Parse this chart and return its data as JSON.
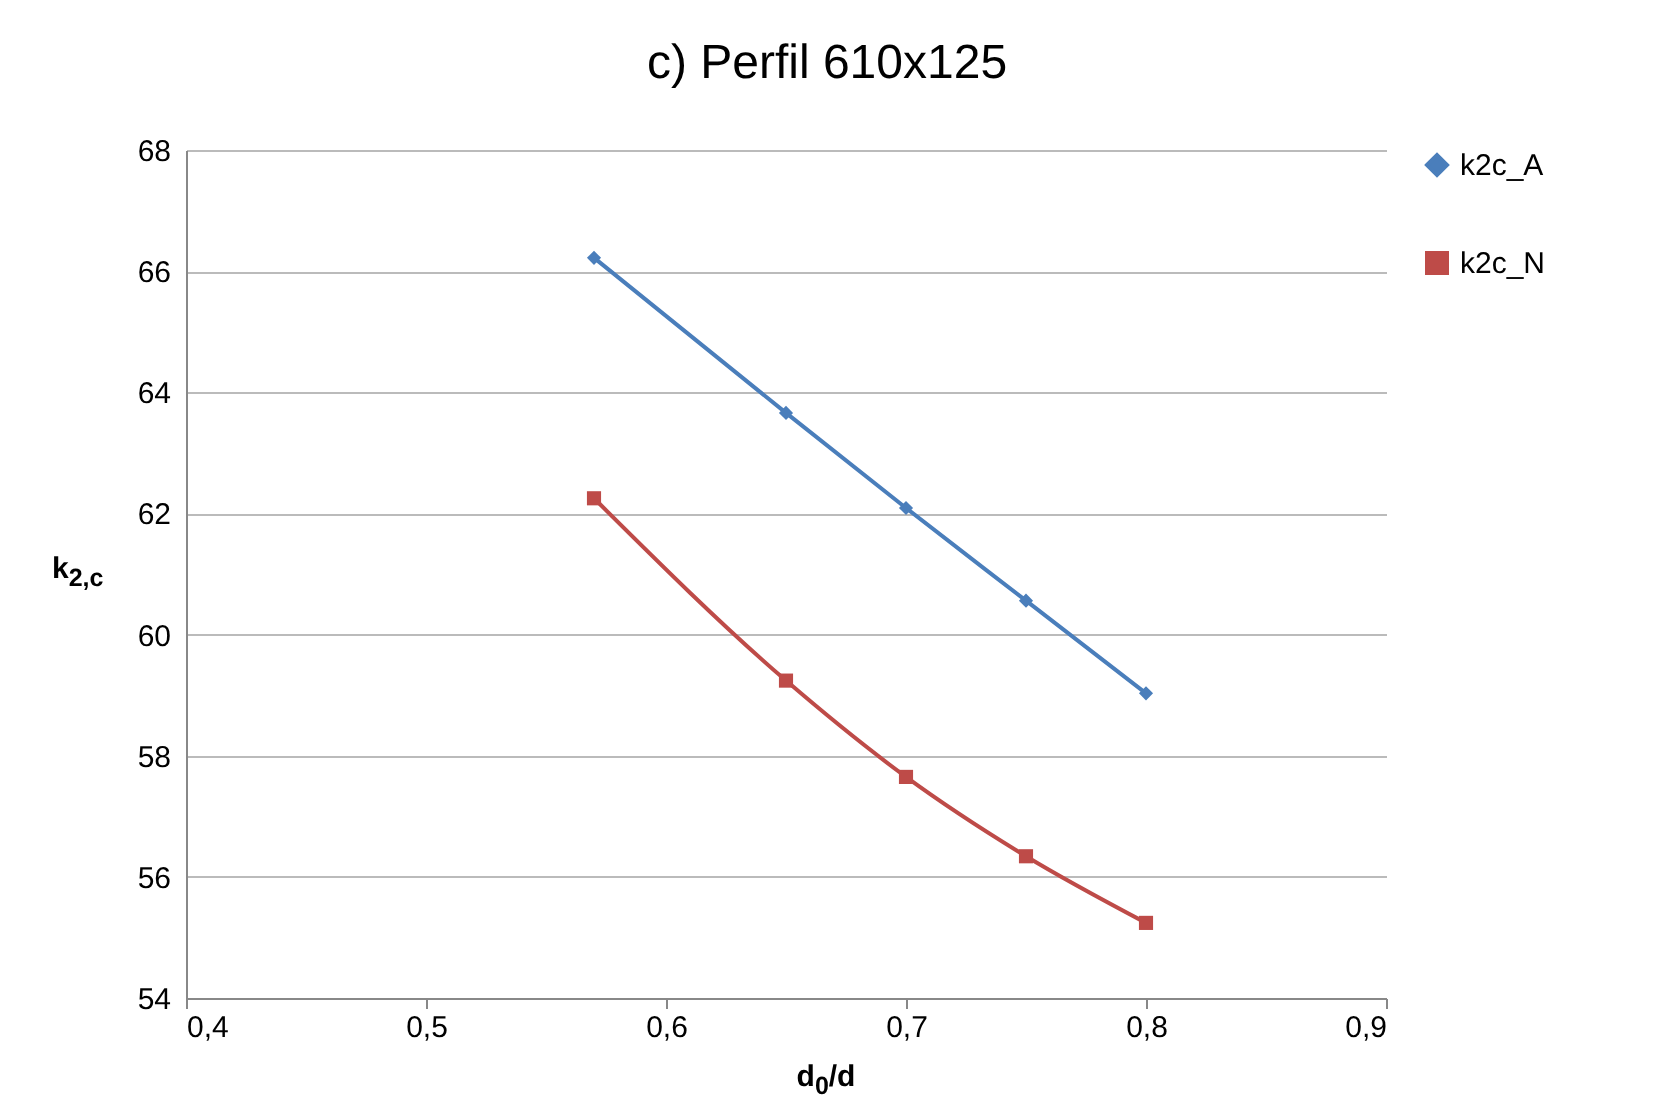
{
  "chart_data": {
    "type": "line",
    "title": "c)  Perfil 610x125",
    "xlabel": "d$_{0}$/d",
    "ylabel": "k$_{2,c}$",
    "x": [
      0.57,
      0.65,
      0.7,
      0.75,
      0.8
    ],
    "series": [
      {
        "name": "k2c_A",
        "color": "#4a7ebb",
        "marker": "diamond",
        "values": [
          66.22,
          63.66,
          62.09,
          60.56,
          59.03
        ]
      },
      {
        "name": "k2c_N",
        "color": "#be4b48",
        "marker": "square",
        "values": [
          62.25,
          59.24,
          57.65,
          56.34,
          55.24
        ]
      }
    ],
    "xlim": [
      0.4,
      0.9
    ],
    "xticks": [
      {
        "value": 0.4,
        "label": "0,4"
      },
      {
        "value": 0.5,
        "label": "0,5"
      },
      {
        "value": 0.6,
        "label": "0,6"
      },
      {
        "value": 0.7,
        "label": "0,7"
      },
      {
        "value": 0.8,
        "label": "0,8"
      },
      {
        "value": 0.9,
        "label": "0,9"
      }
    ],
    "ylim": [
      54,
      68
    ],
    "yticks": [
      54,
      56,
      58,
      60,
      62,
      64,
      66,
      68
    ],
    "grid": "y",
    "legend": "right",
    "line_style": "solid"
  }
}
